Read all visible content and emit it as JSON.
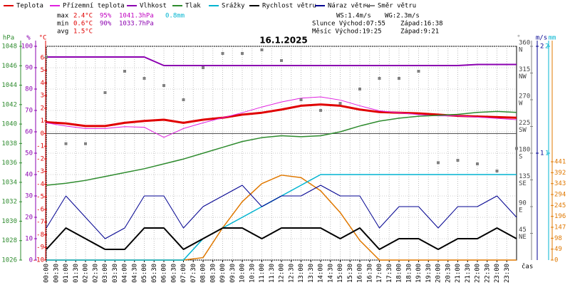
{
  "chart_data": {
    "type": "line",
    "title": "16.1.2025",
    "x_label": "čas",
    "grid": true,
    "x": [
      0,
      1,
      2,
      3,
      4,
      5,
      6,
      7,
      8,
      9,
      10,
      11,
      12,
      13,
      14,
      15,
      16,
      17,
      18,
      19,
      20,
      21,
      22,
      23,
      24
    ],
    "xlim": [
      0,
      24
    ],
    "xticks": [
      {
        "value": 0,
        "label": "00:00"
      },
      {
        "value": 0.5,
        "label": "00:30"
      },
      {
        "value": 1,
        "label": "01:00"
      },
      {
        "value": 1.5,
        "label": "01:30"
      },
      {
        "value": 2,
        "label": "02:00"
      },
      {
        "value": 2.5,
        "label": "02:30"
      },
      {
        "value": 3,
        "label": "03:00"
      },
      {
        "value": 3.5,
        "label": "03:30"
      },
      {
        "value": 4,
        "label": "04:00"
      },
      {
        "value": 4.5,
        "label": "04:30"
      },
      {
        "value": 5,
        "label": "05:00"
      },
      {
        "value": 5.5,
        "label": "05:30"
      },
      {
        "value": 6,
        "label": "06:00"
      },
      {
        "value": 6.5,
        "label": "06:30"
      },
      {
        "value": 7,
        "label": "07:00"
      },
      {
        "value": 7.5,
        "label": "07:30"
      },
      {
        "value": 8,
        "label": "08:00"
      },
      {
        "value": 8.5,
        "label": "08:30"
      },
      {
        "value": 9,
        "label": "09:00"
      },
      {
        "value": 9.5,
        "label": "09:30"
      },
      {
        "value": 10,
        "label": "10:00"
      },
      {
        "value": 10.5,
        "label": "10:30"
      },
      {
        "value": 11,
        "label": "11:00"
      },
      {
        "value": 11.5,
        "label": "11:30"
      },
      {
        "value": 12,
        "label": "12:00"
      },
      {
        "value": 12.5,
        "label": "12:30"
      },
      {
        "value": 13,
        "label": "13:00"
      },
      {
        "value": 13.5,
        "label": "13:30"
      },
      {
        "value": 14,
        "label": "14:00"
      },
      {
        "value": 14.5,
        "label": "14:30"
      },
      {
        "value": 15,
        "label": "15:00"
      },
      {
        "value": 15.5,
        "label": "15:30"
      },
      {
        "value": 16,
        "label": "16:00"
      },
      {
        "value": 16.5,
        "label": "16:30"
      },
      {
        "value": 17,
        "label": "17:00"
      },
      {
        "value": 17.5,
        "label": "17:30"
      },
      {
        "value": 18,
        "label": "18:00"
      },
      {
        "value": 18.5,
        "label": "18:30"
      },
      {
        "value": 19,
        "label": "19:00"
      },
      {
        "value": 19.5,
        "label": "19:30"
      },
      {
        "value": 20,
        "label": "20:00"
      },
      {
        "value": 20.5,
        "label": "20:30"
      },
      {
        "value": 21,
        "label": "21:00"
      },
      {
        "value": 21.5,
        "label": "21:30"
      },
      {
        "value": 22,
        "label": "22:00"
      },
      {
        "value": 22.5,
        "label": "22:30"
      },
      {
        "value": 23,
        "label": "23:00"
      },
      {
        "value": 23.5,
        "label": "23:30"
      }
    ],
    "axes": [
      {
        "unit": "hPa",
        "color": "#2e8b2e",
        "lim": [
          1026,
          1048
        ],
        "ticks": [
          1026,
          1028,
          1030,
          1032,
          1034,
          1036,
          1038,
          1040,
          1042,
          1044,
          1046,
          1048
        ]
      },
      {
        "unit": "%",
        "color": "#8b00b0",
        "lim": [
          0,
          100
        ],
        "ticks": [
          0,
          10,
          20,
          30,
          40,
          50,
          60,
          70,
          80,
          90,
          100
        ],
        "grid": true
      },
      {
        "unit": "°C",
        "color": "#e00000",
        "lim": [
          -10,
          6.9
        ],
        "ticks": [
          -10,
          -9,
          -8,
          -7,
          -6,
          -5,
          -4,
          -3,
          -2,
          -1,
          0,
          1,
          2,
          3,
          4,
          5,
          6
        ],
        "zero_line": true
      },
      {
        "unit": "°",
        "color": "#808080",
        "lim": [
          0,
          360
        ],
        "ticks": [
          45,
          90,
          135,
          180,
          225,
          270,
          315,
          360
        ],
        "tick_names": [
          "NE",
          "E",
          "SE",
          "S",
          "SW",
          "W",
          "NW",
          "N"
        ]
      },
      {
        "unit": "m/s",
        "color": "#000090",
        "lim": [
          0,
          2
        ],
        "ticks": [
          1,
          2
        ]
      },
      {
        "unit": "mm",
        "color": "#00b4d0",
        "lim": [
          0,
          2
        ],
        "ticks": [
          1,
          2
        ]
      },
      {
        "color": "#e07800",
        "lim": [
          0,
          959
        ],
        "ticks": [
          0,
          49,
          98,
          147,
          196,
          245,
          294,
          343,
          392,
          441
        ]
      }
    ],
    "radiation": {
      "color": "#e07800",
      "axis": 6,
      "values": [
        0,
        0,
        0,
        0,
        0,
        0,
        0,
        0,
        11,
        145,
        262,
        343,
        381,
        370,
        311,
        213,
        88,
        0,
        0,
        0,
        0,
        0,
        0,
        0,
        0
      ]
    },
    "series": [
      {
        "name": "Teplota",
        "color": "#e00000",
        "axis": 2,
        "width": 3,
        "style": "line",
        "values": [
          0.9,
          0.8,
          0.6,
          0.6,
          0.85,
          1.0,
          1.1,
          0.85,
          1.1,
          1.25,
          1.5,
          1.65,
          1.9,
          2.2,
          2.3,
          2.2,
          1.9,
          1.7,
          1.65,
          1.6,
          1.5,
          1.4,
          1.35,
          1.3,
          1.25
        ]
      },
      {
        "name": "Přízemní teplota",
        "color": "#e020e0",
        "axis": 2,
        "width": 1,
        "style": "line",
        "values": [
          0.85,
          0.6,
          0.4,
          0.4,
          0.55,
          0.5,
          -0.3,
          0.4,
          0.85,
          1.25,
          1.65,
          2.1,
          2.5,
          2.8,
          2.9,
          2.65,
          2.2,
          1.8,
          1.65,
          1.5,
          1.4,
          1.4,
          1.3,
          1.2,
          1.1
        ]
      },
      {
        "name": "Vlhkost",
        "color": "#8b00b0",
        "axis": 1,
        "width": 2,
        "style": "line",
        "values": [
          95,
          95,
          95,
          95,
          95,
          95,
          91,
          91,
          91,
          91,
          91,
          91,
          91,
          91,
          91,
          91,
          91,
          91,
          91,
          91,
          91,
          91,
          91.5,
          91.5,
          91.5
        ]
      },
      {
        "name": "Tlak",
        "color": "#2e8b2e",
        "axis": 0,
        "width": 1.5,
        "style": "line",
        "values": [
          1033.7,
          1033.9,
          1034.2,
          1034.6,
          1035,
          1035.4,
          1035.9,
          1036.4,
          1037,
          1037.6,
          1038.2,
          1038.6,
          1038.8,
          1038.7,
          1038.8,
          1039.2,
          1039.8,
          1040.3,
          1040.6,
          1040.8,
          1040.9,
          1041,
          1041.2,
          1041.3,
          1041.2
        ]
      },
      {
        "name": "Srážky",
        "color": "#00b4d0",
        "axis": 5,
        "width": 1.5,
        "style": "line",
        "values": [
          0,
          0,
          0,
          0,
          0,
          0,
          0,
          0,
          0.2,
          0.3,
          0.4,
          0.5,
          0.6,
          0.7,
          0.8,
          0.8,
          0.8,
          0.8,
          0.8,
          0.8,
          0.8,
          0.8,
          0.8,
          0.8,
          0.8
        ]
      },
      {
        "name": "Rychlost větru",
        "color": "#000000",
        "axis": 4,
        "width": 2,
        "style": "line",
        "values": [
          0.1,
          0.3,
          0.2,
          0.1,
          0.1,
          0.3,
          0.3,
          0.1,
          0.2,
          0.3,
          0.3,
          0.2,
          0.3,
          0.3,
          0.3,
          0.2,
          0.3,
          0.1,
          0.2,
          0.2,
          0.1,
          0.2,
          0.2,
          0.3,
          0.2
        ]
      },
      {
        "name": "Náraz větru",
        "color": "#000090",
        "axis": 4,
        "width": 1,
        "style": "line",
        "values": [
          0.3,
          0.6,
          0.4,
          0.2,
          0.3,
          0.6,
          0.6,
          0.3,
          0.5,
          0.6,
          0.7,
          0.5,
          0.6,
          0.6,
          0.7,
          0.6,
          0.6,
          0.3,
          0.5,
          0.5,
          0.3,
          0.5,
          0.5,
          0.6,
          0.4
        ]
      },
      {
        "name": "Směr větru",
        "color": "#808080",
        "axis": 3,
        "width": 1,
        "style": "points",
        "values": [
          342,
          196,
          196,
          282,
          318,
          306,
          294,
          270,
          324,
          348,
          348,
          354,
          336,
          270,
          252,
          264,
          288,
          306,
          306,
          318,
          164,
          168,
          162,
          150,
          188
        ]
      }
    ],
    "stats": [
      {
        "label": "max",
        "items": [
          {
            "text": "2.4°C",
            "color": "#e00000"
          },
          {
            "text": "95%",
            "color": "#c000c0"
          },
          {
            "text": "1041.3hPa",
            "color": "#c000c0"
          },
          {
            "text": "0.8mm",
            "color": "#00b4d0"
          }
        ]
      },
      {
        "label": "min",
        "items": [
          {
            "text": "0.6°C",
            "color": "#e00000"
          },
          {
            "text": "90%",
            "color": "#8b00b0"
          },
          {
            "text": "1033.7hPa",
            "color": "#8b00b0"
          }
        ]
      },
      {
        "label": "avg",
        "items": [
          {
            "text": "1.5°C",
            "color": "#e00000"
          }
        ]
      }
    ],
    "info": [
      "WS:1.4m/s",
      "WG:2.3m/s",
      "Slunce Východ:07:55",
      "Západ:16:38",
      "Měsíc Východ:19:25",
      "Západ:9:21"
    ]
  }
}
